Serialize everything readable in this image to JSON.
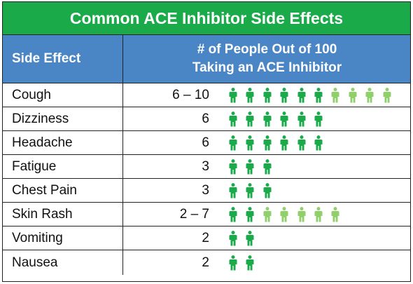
{
  "title": "Common ACE Inhibitor Side Effects",
  "header": {
    "col1": "Side Effect",
    "col2_line1": "# of People Out of 100",
    "col2_line2": "Taking an ACE Inhibitor"
  },
  "colors": {
    "title_bg": "#1aaa4a",
    "header_bg": "#4a86c6",
    "icon_dark": "#1aaa4a",
    "icon_light": "#8fd06a"
  },
  "icon": "person-icon",
  "rows": [
    {
      "name": "Cough",
      "count": "6 – 10",
      "dark": 6,
      "light": 4
    },
    {
      "name": "Dizziness",
      "count": "6",
      "dark": 6,
      "light": 0
    },
    {
      "name": "Headache",
      "count": "6",
      "dark": 6,
      "light": 0
    },
    {
      "name": "Fatigue",
      "count": "3",
      "dark": 3,
      "light": 0
    },
    {
      "name": "Chest Pain",
      "count": "3",
      "dark": 3,
      "light": 0
    },
    {
      "name": "Skin Rash",
      "count": "2 – 7",
      "dark": 2,
      "light": 5
    },
    {
      "name": "Vomiting",
      "count": "2",
      "dark": 2,
      "light": 0
    },
    {
      "name": "Nausea",
      "count": "2",
      "dark": 2,
      "light": 0
    }
  ]
}
